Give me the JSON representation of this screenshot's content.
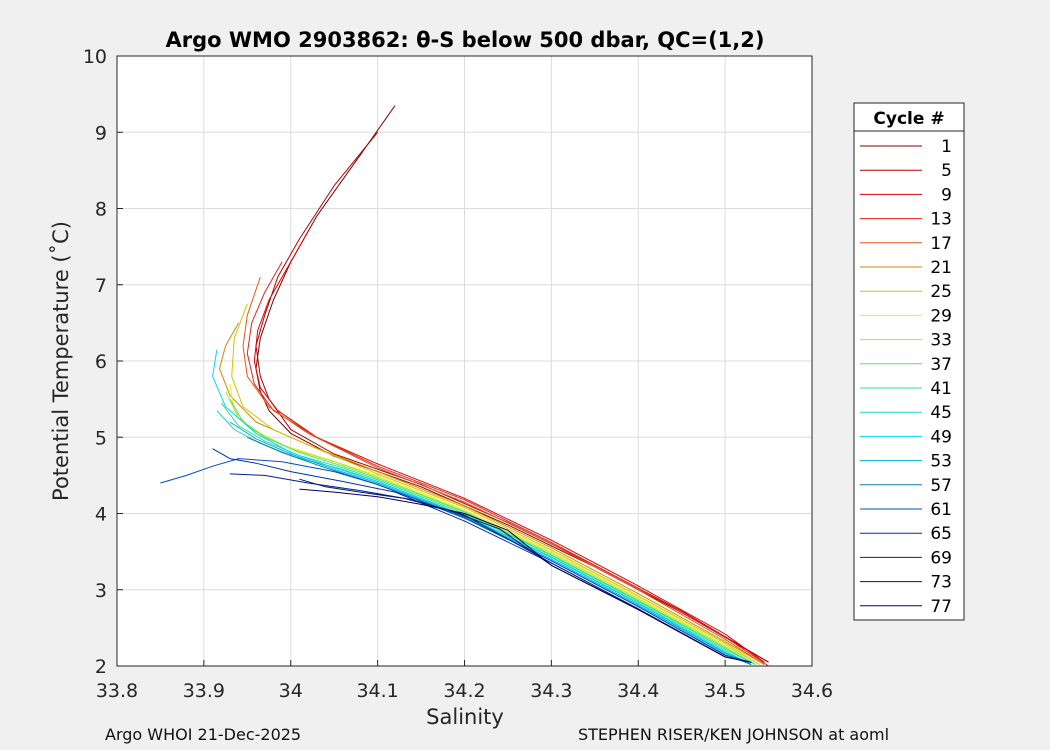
{
  "chart_data": {
    "type": "line",
    "title": "Argo WMO 2903862: θ-S below 500 dbar,  QC=(1,2)",
    "xlabel": "Salinity",
    "ylabel": "Potential Temperature (˚C)",
    "xlim": [
      33.8,
      34.6
    ],
    "ylim": [
      2,
      10
    ],
    "xticks": [
      "33.8",
      "33.9",
      "34",
      "34.1",
      "34.2",
      "34.3",
      "34.4",
      "34.5",
      "34.6"
    ],
    "yticks": [
      "2",
      "3",
      "4",
      "5",
      "6",
      "7",
      "8",
      "9",
      "10"
    ],
    "grid": true,
    "legend": {
      "title": "Cycle #",
      "placement": "outside-right",
      "entries": [
        {
          "label": "1",
          "color": "#800000"
        },
        {
          "label": "5",
          "color": "#b00000"
        },
        {
          "label": "9",
          "color": "#e00000"
        },
        {
          "label": "13",
          "color": "#e82020"
        },
        {
          "label": "17",
          "color": "#e05a10"
        },
        {
          "label": "21",
          "color": "#d08a00"
        },
        {
          "label": "25",
          "color": "#d8c000"
        },
        {
          "label": "29",
          "color": "#f0f000"
        },
        {
          "label": "33",
          "color": "#a8e830"
        },
        {
          "label": "37",
          "color": "#60e060"
        },
        {
          "label": "41",
          "color": "#30e090"
        },
        {
          "label": "45",
          "color": "#20d8c0"
        },
        {
          "label": "49",
          "color": "#00d8f0"
        },
        {
          "label": "53",
          "color": "#00b0d8"
        },
        {
          "label": "57",
          "color": "#0080b0"
        },
        {
          "label": "61",
          "color": "#0050c0"
        },
        {
          "label": "65",
          "color": "#0030b0"
        },
        {
          "label": "69",
          "color": "#002090"
        },
        {
          "label": "73",
          "color": "#001870"
        },
        {
          "label": "77",
          "color": "#000060"
        }
      ]
    },
    "series": [
      {
        "color": "#800000",
        "x": [
          34.12,
          34.08,
          34.03,
          34.0,
          33.98,
          33.965,
          33.96,
          33.965,
          33.975,
          34.0,
          34.05,
          34.15,
          34.25,
          34.35,
          34.45,
          34.55
        ],
        "y": [
          9.35,
          8.7,
          7.9,
          7.3,
          6.8,
          6.3,
          5.9,
          5.6,
          5.35,
          5.05,
          4.75,
          4.35,
          3.85,
          3.3,
          2.7,
          2.05
        ]
      },
      {
        "color": "#b00000",
        "x": [
          34.1,
          34.05,
          34.01,
          33.985,
          33.97,
          33.96,
          33.965,
          33.975,
          34.0,
          34.05,
          34.15,
          34.25,
          34.35,
          34.45,
          34.55
        ],
        "y": [
          9.0,
          8.3,
          7.6,
          7.1,
          6.6,
          6.2,
          5.8,
          5.5,
          5.1,
          4.78,
          4.38,
          3.88,
          3.32,
          2.72,
          2.05
        ]
      },
      {
        "color": "#e00000",
        "x": [
          34.02,
          33.995,
          33.975,
          33.962,
          33.958,
          33.965,
          33.985,
          34.03,
          34.1,
          34.2,
          34.3,
          34.4,
          34.5,
          34.545
        ],
        "y": [
          7.7,
          7.2,
          6.8,
          6.4,
          6.0,
          5.65,
          5.35,
          5.0,
          4.65,
          4.2,
          3.65,
          3.05,
          2.42,
          2.05
        ]
      },
      {
        "color": "#e82020",
        "x": [
          33.99,
          33.97,
          33.955,
          33.95,
          33.958,
          33.98,
          34.03,
          34.1,
          34.2,
          34.3,
          34.4,
          34.5,
          34.55
        ],
        "y": [
          7.3,
          6.9,
          6.5,
          6.1,
          5.7,
          5.35,
          5.0,
          4.62,
          4.18,
          3.62,
          3.02,
          2.38,
          2.0
        ]
      },
      {
        "color": "#e05a10",
        "x": [
          33.965,
          33.95,
          33.945,
          33.95,
          33.975,
          34.02,
          34.1,
          34.2,
          34.3,
          34.4,
          34.5,
          34.545
        ],
        "y": [
          7.1,
          6.6,
          6.2,
          5.8,
          5.4,
          5.05,
          4.6,
          4.15,
          3.6,
          3.0,
          2.35,
          2.02
        ]
      },
      {
        "color": "#d08a00",
        "x": [
          33.94,
          33.925,
          33.918,
          33.93,
          33.96,
          34.02,
          34.1,
          34.2,
          34.3,
          34.4,
          34.5,
          34.545
        ],
        "y": [
          6.5,
          6.2,
          5.9,
          5.55,
          5.2,
          4.9,
          4.55,
          4.1,
          3.55,
          2.95,
          2.32,
          2.02
        ]
      },
      {
        "color": "#d8c000",
        "x": [
          33.95,
          33.935,
          33.932,
          33.945,
          33.98,
          34.03,
          34.1,
          34.2,
          34.3,
          34.4,
          34.5,
          34.54
        ],
        "y": [
          6.75,
          6.3,
          5.8,
          5.4,
          5.1,
          4.85,
          4.52,
          4.08,
          3.52,
          2.92,
          2.3,
          2.02
        ]
      },
      {
        "color": "#f0f000",
        "x": [
          33.93,
          33.935,
          33.955,
          33.99,
          34.04,
          34.1,
          34.2,
          34.3,
          34.4,
          34.5,
          34.54
        ],
        "y": [
          5.7,
          5.35,
          5.1,
          4.9,
          4.72,
          4.5,
          4.05,
          3.5,
          2.9,
          2.28,
          2.02
        ]
      },
      {
        "color": "#a8e830",
        "x": [
          33.925,
          33.94,
          33.965,
          34.0,
          34.05,
          34.1,
          34.2,
          34.3,
          34.4,
          34.5,
          34.54
        ],
        "y": [
          5.6,
          5.25,
          5.05,
          4.85,
          4.68,
          4.48,
          4.03,
          3.48,
          2.88,
          2.26,
          2.02
        ]
      },
      {
        "color": "#60e060",
        "x": [
          33.93,
          33.945,
          33.97,
          34.01,
          34.06,
          34.1,
          34.2,
          34.3,
          34.4,
          34.5,
          34.535
        ],
        "y": [
          5.5,
          5.2,
          5.0,
          4.8,
          4.62,
          4.46,
          4.02,
          3.46,
          2.86,
          2.24,
          2.02
        ]
      },
      {
        "color": "#30e090",
        "x": [
          33.92,
          33.94,
          33.97,
          34.01,
          34.06,
          34.1,
          34.2,
          34.3,
          34.4,
          34.5,
          34.535
        ],
        "y": [
          5.45,
          5.15,
          4.95,
          4.76,
          4.6,
          4.44,
          4.0,
          3.45,
          2.85,
          2.22,
          2.02
        ]
      },
      {
        "color": "#20d8c0",
        "x": [
          33.915,
          33.935,
          33.965,
          34.005,
          34.06,
          34.1,
          34.2,
          34.3,
          34.4,
          34.5,
          34.53
        ],
        "y": [
          5.35,
          5.1,
          4.92,
          4.74,
          4.58,
          4.42,
          3.98,
          3.43,
          2.83,
          2.2,
          2.02
        ]
      },
      {
        "color": "#00d8f0",
        "x": [
          33.915,
          33.91,
          33.925,
          33.96,
          34.0,
          34.05,
          34.1,
          34.2,
          34.3,
          34.4,
          34.5,
          34.53
        ],
        "y": [
          6.15,
          5.8,
          5.4,
          5.05,
          4.8,
          4.6,
          4.42,
          3.97,
          3.42,
          2.82,
          2.18,
          2.02
        ]
      },
      {
        "color": "#00b0d8",
        "x": [
          33.93,
          33.96,
          34.0,
          34.05,
          34.1,
          34.2,
          34.3,
          34.4,
          34.5,
          34.53
        ],
        "y": [
          5.2,
          4.98,
          4.78,
          4.58,
          4.4,
          3.96,
          3.4,
          2.8,
          2.17,
          2.02
        ]
      },
      {
        "color": "#0080b0",
        "x": [
          33.95,
          33.99,
          34.04,
          34.1,
          34.2,
          34.3,
          34.4,
          34.5,
          34.53
        ],
        "y": [
          5.0,
          4.8,
          4.6,
          4.38,
          3.95,
          3.38,
          2.78,
          2.15,
          2.02
        ]
      },
      {
        "color": "#0050c0",
        "x": [
          33.85,
          33.88,
          33.91,
          33.94,
          33.99,
          34.05,
          34.1,
          34.2,
          34.3,
          34.4,
          34.5,
          34.53
        ],
        "y": [
          4.4,
          4.5,
          4.62,
          4.72,
          4.68,
          4.55,
          4.38,
          3.94,
          3.38,
          2.78,
          2.14,
          2.05
        ]
      },
      {
        "color": "#0030b0",
        "x": [
          33.91,
          33.93,
          33.96,
          34.0,
          34.06,
          34.12,
          34.2,
          34.3,
          34.4,
          34.5,
          34.53
        ],
        "y": [
          4.85,
          4.72,
          4.66,
          4.55,
          4.42,
          4.28,
          3.9,
          3.35,
          2.75,
          2.12,
          2.05
        ]
      },
      {
        "color": "#002090",
        "x": [
          33.93,
          33.97,
          34.02,
          34.08,
          34.14,
          34.2,
          34.3,
          34.4,
          34.5,
          34.53
        ],
        "y": [
          4.52,
          4.5,
          4.4,
          4.3,
          4.18,
          3.98,
          3.35,
          2.75,
          2.12,
          2.05
        ]
      },
      {
        "color": "#001870",
        "x": [
          34.01,
          34.04,
          34.08,
          34.13,
          34.18,
          34.24,
          34.3,
          34.4,
          34.5,
          34.53
        ],
        "y": [
          4.45,
          4.35,
          4.28,
          4.2,
          4.05,
          3.8,
          3.32,
          2.74,
          2.12,
          2.05
        ]
      },
      {
        "color": "#000060",
        "x": [
          34.01,
          34.05,
          34.1,
          34.15,
          34.2,
          34.25,
          34.3,
          34.4,
          34.5,
          34.53
        ],
        "y": [
          4.32,
          4.28,
          4.22,
          4.12,
          4.0,
          3.78,
          3.32,
          2.74,
          2.12,
          2.05
        ]
      }
    ]
  },
  "footer": {
    "left": "Argo WHOI 21-Dec-2025",
    "right": "STEPHEN RISER/KEN JOHNSON at aoml"
  }
}
